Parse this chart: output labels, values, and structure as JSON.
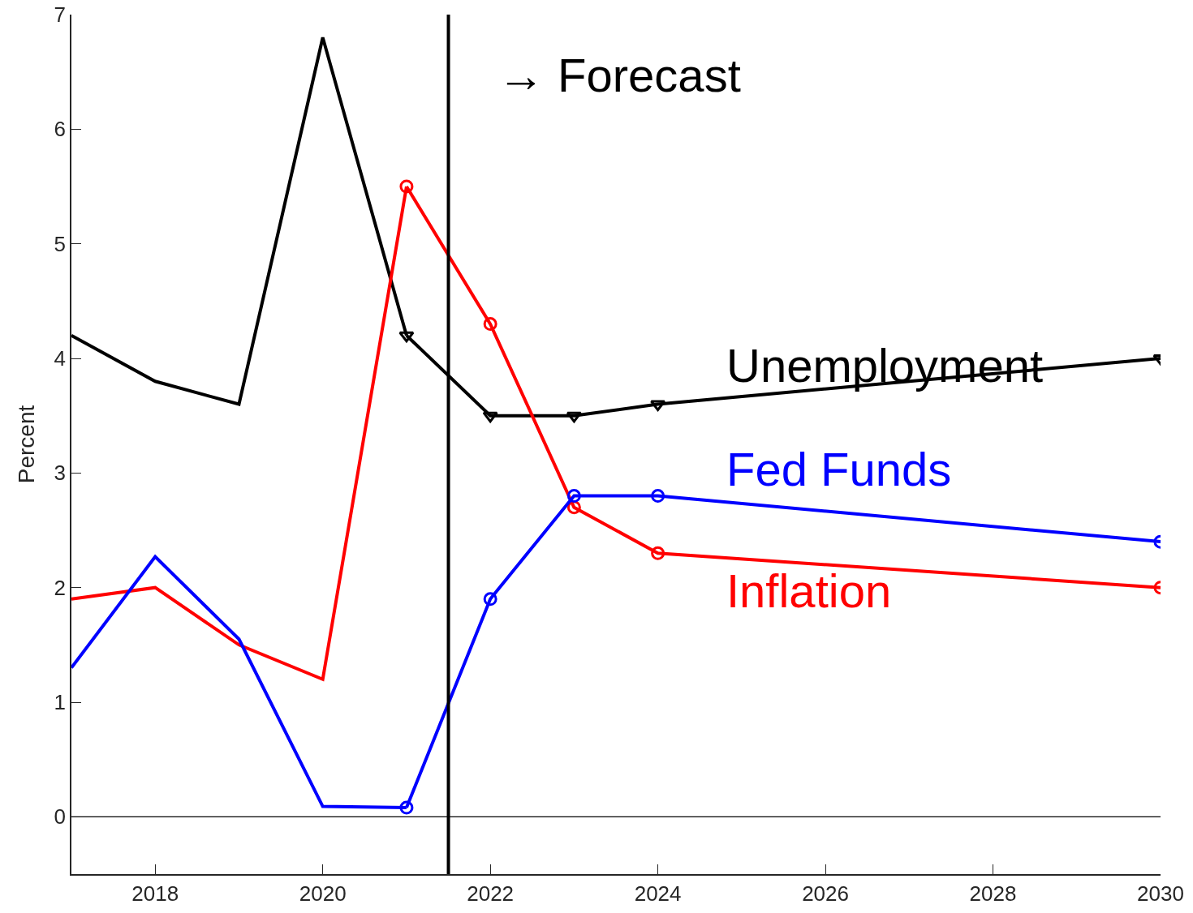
{
  "chart_data": {
    "type": "line",
    "ylabel": "Percent",
    "xlim": [
      2017,
      2030
    ],
    "ylim": [
      -0.5,
      7
    ],
    "xticks": [
      2018,
      2020,
      2022,
      2024,
      2026,
      2028,
      2030
    ],
    "yticks": [
      0,
      1,
      2,
      3,
      4,
      5,
      6,
      7
    ],
    "grid": false,
    "legend": false,
    "series": [
      {
        "color": "#000000",
        "marker": "none",
        "x": [
          2017,
          2018,
          2019,
          2020,
          2021
        ],
        "values": [
          4.2,
          3.8,
          3.6,
          6.8,
          4.2
        ]
      },
      {
        "name": "Unemployment",
        "color": "#000000",
        "marker": "triangle",
        "x": [
          2021,
          2022,
          2023,
          2024,
          2030
        ],
        "values": [
          4.2,
          3.5,
          3.5,
          3.6,
          4.0
        ]
      },
      {
        "color": "#ff0000",
        "marker": "none",
        "x": [
          2017,
          2018,
          2019,
          2020,
          2021
        ],
        "values": [
          1.9,
          2.0,
          1.5,
          1.2,
          5.5
        ]
      },
      {
        "name": "Inflation",
        "color": "#ff0000",
        "marker": "circle",
        "x": [
          2021,
          2022,
          2023,
          2024,
          2030
        ],
        "values": [
          5.5,
          4.3,
          2.7,
          2.3,
          2.0
        ]
      },
      {
        "color": "#0000ff",
        "marker": "none",
        "x": [
          2017,
          2018,
          2019,
          2020,
          2021
        ],
        "values": [
          1.3,
          2.27,
          1.55,
          0.09,
          0.08
        ]
      },
      {
        "name": "Fed Funds",
        "color": "#0000ff",
        "marker": "circle",
        "x": [
          2021,
          2022,
          2023,
          2024,
          2030
        ],
        "values": [
          0.08,
          1.9,
          2.8,
          2.8,
          2.4
        ]
      }
    ],
    "ref_lines": [
      {
        "axis": "y",
        "value": 0,
        "color": "#000000"
      },
      {
        "axis": "x",
        "value": 2021.5,
        "color": "#000000"
      }
    ],
    "annotations": [
      "→ Forecast"
    ]
  }
}
